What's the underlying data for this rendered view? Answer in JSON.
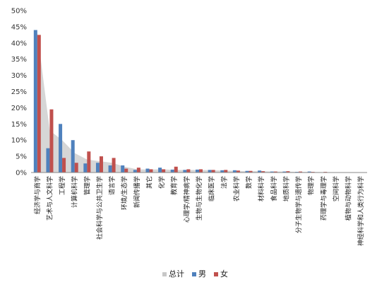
{
  "chart_data": {
    "type": "bar",
    "categories": [
      "经济学与商学",
      "艺术与人文科学",
      "工程学",
      "计算机科学",
      "管理学",
      "社会科学与公共卫生学",
      "语言学",
      "环境/生态学",
      "新闻传播学",
      "其它",
      "化学",
      "教育学",
      "心理学/精神病学",
      "生物与生物化学",
      "临床医学",
      "法学",
      "农业科学",
      "数学",
      "材料科学",
      "食品科学",
      "地质科学",
      "分子生物学与遗传学",
      "物理学",
      "药理学与毒理学",
      "空间科学",
      "植物与动物科学",
      "神经科学和人类行为科学"
    ],
    "series": [
      {
        "name": "总计",
        "color": "#c8c8c8",
        "values": [
          43.5,
          13,
          10,
          6,
          4,
          3.5,
          3,
          1.8,
          1,
          0.9,
          1,
          0.8,
          0.8,
          0.8,
          0.7,
          0.6,
          0.5,
          0.4,
          0.4,
          0.3,
          0.3,
          0.2,
          0.2,
          0.1,
          0.1,
          0.1,
          0.05
        ]
      },
      {
        "name": "男",
        "color": "#4f81bd",
        "values": [
          44,
          7.5,
          15,
          10,
          2.8,
          3,
          2.2,
          2.2,
          0.8,
          1.2,
          1.5,
          0.9,
          0.8,
          0.9,
          0.8,
          0.7,
          0.7,
          0.5,
          0.6,
          0.3,
          0.3,
          0.2,
          0.3,
          0.1,
          0.1,
          0.1,
          0.05
        ]
      },
      {
        "name": "女",
        "color": "#c0504d",
        "values": [
          42.5,
          19.5,
          4.5,
          3,
          6.5,
          5,
          4.5,
          1.2,
          1.5,
          1,
          1,
          1.8,
          1,
          1,
          0.8,
          0.8,
          0.6,
          0.5,
          0.4,
          0.3,
          0.4,
          0.3,
          0.2,
          0.2,
          0.1,
          0.1,
          0.05
        ]
      }
    ],
    "yticks": [
      "0%",
      "5%",
      "10%",
      "15%",
      "20%",
      "25%",
      "30%",
      "35%",
      "40%",
      "45%",
      "50%"
    ],
    "ylim": [
      0,
      50
    ],
    "legend_position": "bottom",
    "grid": false
  }
}
